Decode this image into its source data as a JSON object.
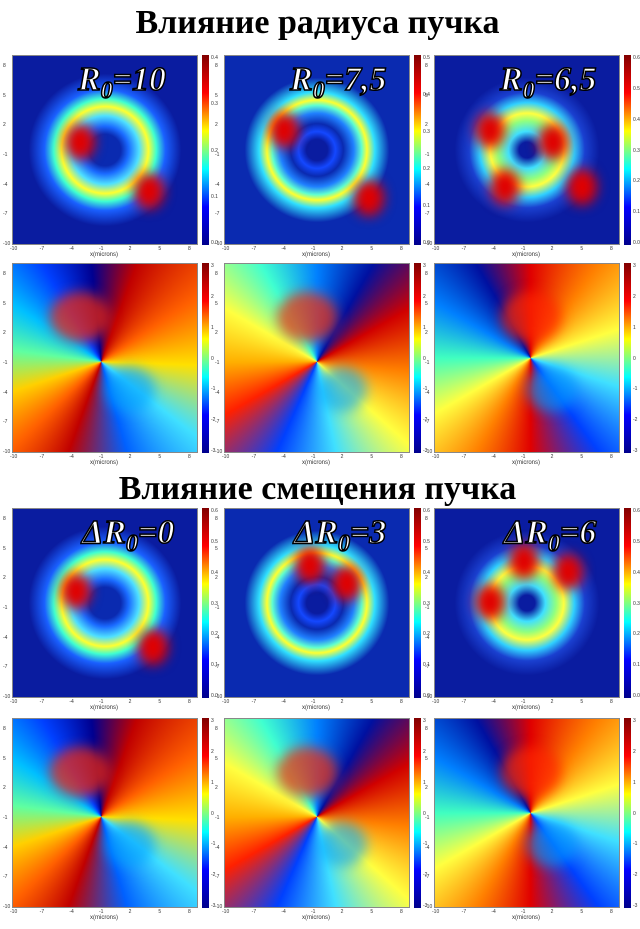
{
  "sections": [
    {
      "title": "Влияние радиуса пучка",
      "panels": [
        {
          "symbol": "R",
          "sub": "0",
          "value": "=10",
          "intensity_ticks": [
            "0.4",
            "0.3",
            "0.2",
            "0.1",
            "0.0"
          ]
        },
        {
          "symbol": "R",
          "sub": "0",
          "value": "=7,5",
          "intensity_ticks": [
            "0.5",
            "0.4",
            "0.3",
            "0.2",
            "0.1",
            "0.0"
          ]
        },
        {
          "symbol": "R",
          "sub": "0",
          "value": "=6,5",
          "intensity_ticks": [
            "0.6",
            "0.5",
            "0.4",
            "0.3",
            "0.2",
            "0.1",
            "0.0"
          ]
        }
      ]
    },
    {
      "title": "Влияние смещения пучка",
      "panels": [
        {
          "symbol": "ΔR",
          "sub": "0",
          "value": "=0",
          "intensity_ticks": [
            "0.6",
            "0.5",
            "0.4",
            "0.3",
            "0.2",
            "0.1",
            "0.0"
          ]
        },
        {
          "symbol": "ΔR",
          "sub": "0",
          "value": "=3",
          "intensity_ticks": [
            "0.6",
            "0.5",
            "0.4",
            "0.3",
            "0.2",
            "0.1",
            "0.0"
          ]
        },
        {
          "symbol": "ΔR",
          "sub": "0",
          "value": "=6",
          "intensity_ticks": [
            "0.6",
            "0.5",
            "0.4",
            "0.3",
            "0.2",
            "0.1",
            "0.0"
          ]
        }
      ]
    }
  ],
  "axis": {
    "x_label": "x(microns)",
    "x_ticks": [
      "-10",
      "-7",
      "-4",
      "-1",
      "2",
      "5",
      "8"
    ],
    "y_ticks": [
      "8",
      "5",
      "2",
      "-1",
      "-4",
      "-7",
      "-10"
    ],
    "phase_ticks": [
      "3",
      "2",
      "1",
      "0",
      "-1",
      "-2",
      "-3"
    ]
  }
}
